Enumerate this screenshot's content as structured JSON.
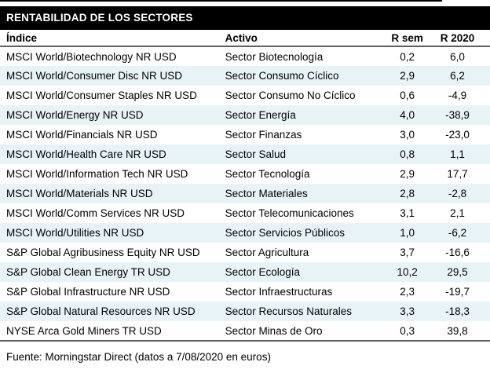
{
  "title": "RENTABILIDAD DE LOS SECTORES",
  "table": {
    "columns": [
      "Índice",
      "Activo",
      "R sem",
      "R 2020"
    ],
    "rows": [
      {
        "indice": "MSCI World/Biotechnology NR USD",
        "activo": "Sector Biotecnología",
        "r_sem": "0,2",
        "r_2020": "6,0"
      },
      {
        "indice": "MSCI World/Consumer Disc NR USD",
        "activo": "Sector Consumo Cíclico",
        "r_sem": "2,9",
        "r_2020": "6,2"
      },
      {
        "indice": "MSCI World/Consumer Staples NR USD",
        "activo": "Sector Consumo No Cíclico",
        "r_sem": "0,6",
        "r_2020": "-4,9"
      },
      {
        "indice": "MSCI World/Energy NR USD",
        "activo": "Sector Energía",
        "r_sem": "4,0",
        "r_2020": "-38,9"
      },
      {
        "indice": "MSCI World/Financials NR USD",
        "activo": "Sector Finanzas",
        "r_sem": "3,0",
        "r_2020": "-23,0"
      },
      {
        "indice": "MSCI World/Health Care NR USD",
        "activo": "Sector Salud",
        "r_sem": "0,8",
        "r_2020": "1,1"
      },
      {
        "indice": "MSCI World/Information Tech NR USD",
        "activo": "Sector Tecnología",
        "r_sem": "2,9",
        "r_2020": "17,7"
      },
      {
        "indice": "MSCI World/Materials NR USD",
        "activo": "Sector Materiales",
        "r_sem": "2,8",
        "r_2020": "-2,8"
      },
      {
        "indice": "MSCI World/Comm Services NR USD",
        "activo": "Sector Telecomunicaciones",
        "r_sem": "3,1",
        "r_2020": "2,1"
      },
      {
        "indice": "MSCI World/Utilities NR USD",
        "activo": "Sector Servicios Públicos",
        "r_sem": "1,0",
        "r_2020": "-6,2"
      },
      {
        "indice": "S&P Global Agribusiness Equity NR USD",
        "activo": "Sector Agricultura",
        "r_sem": "3,7",
        "r_2020": "-16,6"
      },
      {
        "indice": "S&P Global Clean Energy TR USD",
        "activo": "Sector Ecología",
        "r_sem": "10,2",
        "r_2020": "29,5"
      },
      {
        "indice": "S&P Global Infrastructure NR USD",
        "activo": "Sector Infraestructuras",
        "r_sem": "2,3",
        "r_2020": "-19,7"
      },
      {
        "indice": "S&P Global Natural Resources NR USD",
        "activo": "Sector Recursos Naturales",
        "r_sem": "3,3",
        "r_2020": "-18,3"
      },
      {
        "indice": "NYSE Arca Gold Miners TR USD",
        "activo": "Sector Minas de Oro",
        "r_sem": "0,3",
        "r_2020": "39,8"
      }
    ]
  },
  "footer": "Fuente: Morningstar Direct (datos a 7/08/2020 en euros)",
  "colors": {
    "title_bar_bg": "#000000",
    "title_text": "#ffffff",
    "row_alt_bg": "#e8f3f8",
    "rule": "#5f5f5f",
    "text": "#000000"
  }
}
